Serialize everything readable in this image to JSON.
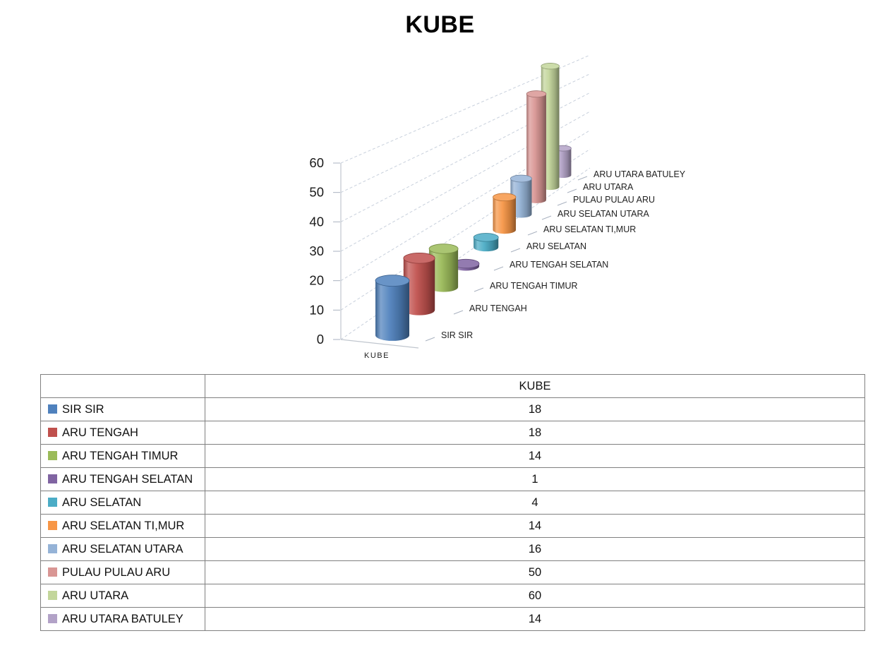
{
  "title": "KUBE",
  "chart_data": {
    "type": "bar",
    "variant": "3d-cylinder",
    "title": "KUBE",
    "categories": [
      "SIR SIR",
      "ARU TENGAH",
      "ARU TENGAH TIMUR",
      "ARU TENGAH SELATAN",
      "ARU SELATAN",
      "ARU SELATAN TI,MUR",
      "ARU SELATAN UTARA",
      "PULAU PULAU ARU",
      "ARU UTARA",
      "ARU UTARA BATULEY"
    ],
    "values": [
      18,
      18,
      14,
      1,
      4,
      14,
      16,
      50,
      60,
      14
    ],
    "series_colors": [
      "#4F81BD",
      "#C0504D",
      "#9BBB59",
      "#8064A2",
      "#4BACC6",
      "#F79646",
      "#95B3D7",
      "#D99694",
      "#C3D69B",
      "#B2A2C7"
    ],
    "value_axis": {
      "min": 0,
      "max": 60,
      "step": 10,
      "tick_labels": [
        "0",
        "10",
        "20",
        "30",
        "40",
        "50",
        "60"
      ]
    },
    "category_axis_label": "KUBE",
    "grid": "dashed",
    "legend_position": "table"
  },
  "table": {
    "value_column_header": "KUBE"
  }
}
